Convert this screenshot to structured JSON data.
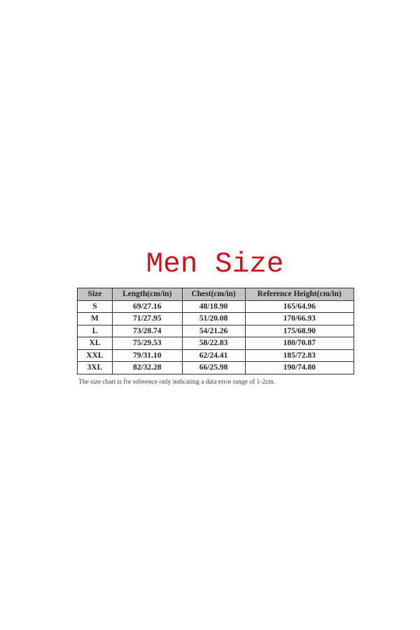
{
  "title": "Men Size",
  "table": {
    "headers": [
      "Size",
      "Length(cm/in)",
      "Chest(cm/in)",
      "Reference Height(cm/in)"
    ],
    "rows": [
      [
        "S",
        "69/27.16",
        "48/18.90",
        "165/64.96"
      ],
      [
        "M",
        "71/27.95",
        "51/20.08",
        "170/66.93"
      ],
      [
        "L",
        "73/28.74",
        "54/21.26",
        "175/68.90"
      ],
      [
        "XL",
        "75/29.53",
        "58/22.83",
        "180/70.87"
      ],
      [
        "XXL",
        "79/31.10",
        "62/24.41",
        "185/72.83"
      ],
      [
        "3XL",
        "82/32.28",
        "66/25.98",
        "190/74.80"
      ]
    ]
  },
  "note": "The size chart is for reference only indicating a data error range of 1-2cm.",
  "colors": {
    "title": "#c8141a",
    "header_bg": "#c4c4c4"
  }
}
